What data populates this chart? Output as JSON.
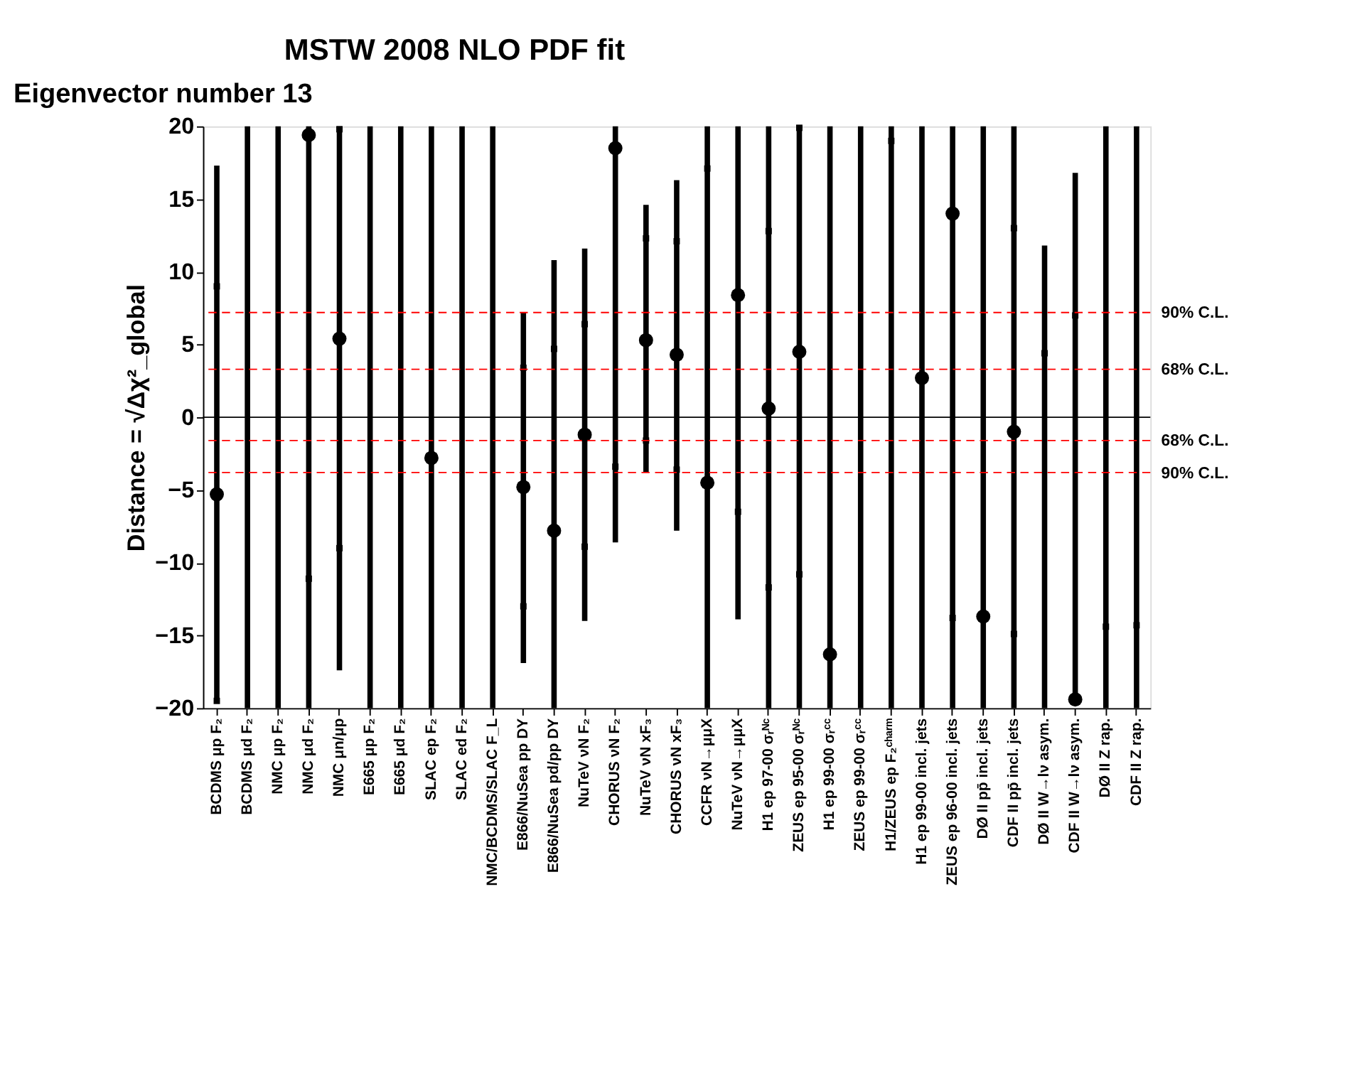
{
  "chart_data": {
    "type": "bar",
    "title": "MSTW 2008 NLO PDF fit",
    "annotations": [
      "Eigenvector number 13"
    ],
    "ylabel": "Distance = √Δχ²_global",
    "categories": [
      "BCDMS μp F₂",
      "BCDMS μd F₂",
      "NMC μp F₂",
      "NMC μd F₂",
      "NMC μn/μp",
      "E665 μp F₂",
      "E665 μd F₂",
      "SLAC ep F₂",
      "SLAC ed F₂",
      "NMC/BCDMS/SLAC F_L",
      "E866/NuSea pp DY",
      "E866/NuSea pd/pp DY",
      "NuTeV νN F₂",
      "CHORUS νN F₂",
      "NuTeV νN xF₃",
      "CHORUS νN xF₃",
      "CCFR νN→μμX",
      "NuTeV νN→μμX",
      "H1 ep 97-00 σᵣᴺᶜ",
      "ZEUS ep 95-00 σᵣᴺᶜ",
      "H1 ep 99-00 σᵣᶜᶜ",
      "ZEUS ep 99-00 σᵣᶜᶜ",
      "H1/ZEUS ep F₂ᶜʰᵃʳᵐ",
      "H1 ep 99-00 incl. jets",
      "ZEUS ep 96-00 incl. jets",
      "DØ II pp̄ incl. jets",
      "CDF II pp̄ incl. jets",
      "DØ II W→lν asym.",
      "CDF II W→lν asym.",
      "DØ II Z rap.",
      "CDF II Z rap."
    ],
    "series": [
      {
        "color": "#000000",
        "base": [
          -19.5,
          -20,
          -20,
          -20,
          -17.4,
          -20,
          -20,
          -20,
          -20,
          -20,
          -16.9,
          -20,
          -14.0,
          -8.6,
          -3.8,
          -7.8,
          -20,
          -13.9,
          -20,
          -20,
          -20,
          -20,
          -20,
          -20,
          -20,
          -20,
          -20,
          -20,
          -19.4,
          -20,
          -20
        ],
        "values": [
          36.8,
          40,
          40,
          40,
          37.4,
          40,
          40,
          40,
          40,
          40,
          24.1,
          30.8,
          25.6,
          28.6,
          18.4,
          24.1,
          40,
          33.9,
          40,
          40,
          40,
          40,
          40,
          40,
          40,
          40,
          40,
          31.8,
          36.2,
          40,
          40
        ]
      },
      {
        "type": "scatter",
        "marker": "circle",
        "color": "#000000",
        "values": [
          -5.3,
          null,
          null,
          19.4,
          5.4,
          null,
          null,
          -2.8,
          null,
          null,
          -4.8,
          -7.8,
          -1.2,
          18.5,
          5.3,
          4.3,
          -4.5,
          8.4,
          0.6,
          4.5,
          -16.3,
          null,
          null,
          2.7,
          14.0,
          -13.7,
          -1.0,
          null,
          -19.4,
          null,
          null
        ]
      },
      {
        "type": "scatter",
        "marker": "square",
        "color": "#000000",
        "values": [
          9.0,
          null,
          null,
          null,
          19.8,
          null,
          null,
          null,
          null,
          null,
          3.4,
          4.7,
          6.4,
          null,
          12.3,
          12.1,
          17.1,
          null,
          12.8,
          19.9,
          null,
          null,
          19.0,
          null,
          null,
          null,
          13.0,
          4.4,
          7.0,
          null,
          null
        ]
      },
      {
        "type": "scatter",
        "marker": "square",
        "color": "#000000",
        "values": [
          -19.5,
          null,
          null,
          -11.1,
          -9.0,
          null,
          null,
          null,
          null,
          null,
          -13.0,
          null,
          -8.9,
          -3.4,
          -1.6,
          -3.6,
          null,
          -6.5,
          -11.7,
          -10.8,
          null,
          null,
          null,
          null,
          -13.8,
          null,
          -14.9,
          null,
          null,
          -14.4,
          -14.3
        ]
      }
    ],
    "ylim": [
      -20,
      20
    ],
    "yticks": [
      -20,
      -15,
      -10,
      -5,
      0,
      5,
      10,
      15,
      20
    ],
    "ref_lines": [
      {
        "axis": "y",
        "value": 0,
        "label": null,
        "color": "#000000",
        "line_style": "solid"
      },
      {
        "axis": "y",
        "value": 7.2,
        "label": "90% C.L.",
        "color": "#ff0000",
        "line_style": "dashed"
      },
      {
        "axis": "y",
        "value": 3.3,
        "label": "68% C.L.",
        "color": "#ff0000",
        "line_style": "dashed"
      },
      {
        "axis": "y",
        "value": -1.6,
        "label": "68% C.L.",
        "color": "#ff0000",
        "line_style": "dashed"
      },
      {
        "axis": "y",
        "value": -3.8,
        "label": "90% C.L.",
        "color": "#ff0000",
        "line_style": "dashed"
      }
    ],
    "grid": false
  }
}
